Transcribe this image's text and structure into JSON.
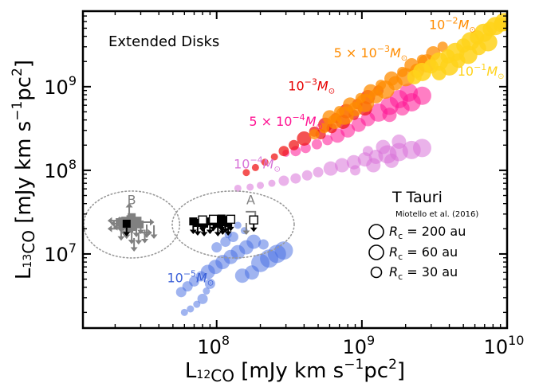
{
  "chart_data": {
    "type": "scatter",
    "title": "Extended Disks",
    "xlabel": "L₁₂CO [mJy km s⁻¹pc²]",
    "ylabel": "L₁₃CO [mJy km s⁻¹pc²]",
    "xlabel_parts": {
      "lead": "L",
      "sub": "12",
      "sub2": "CO",
      "rest": " [mJy km s",
      "sup": "−1",
      "tail": "pc",
      "sup2": "2",
      "end": "]"
    },
    "ylabel_parts": {
      "lead": "L",
      "sub": "13",
      "sub2": "CO",
      "rest": " [mJy km s",
      "sup": "−1",
      "tail": "pc",
      "sup2": "2",
      "end": "]"
    },
    "xscale": "log",
    "yscale": "log",
    "xlim": [
      12000000.0,
      10000000000.0
    ],
    "ylim": [
      1300000.0,
      8000000000.0
    ],
    "x_ticks": [
      {
        "value": 100000000.0,
        "base": "10",
        "exp": "8"
      },
      {
        "value": 1000000000.0,
        "base": "10",
        "exp": "9"
      },
      {
        "value": 10000000000.0,
        "base": "10",
        "exp": "10"
      }
    ],
    "y_ticks": [
      {
        "value": 10000000.0,
        "base": "10",
        "exp": "7"
      },
      {
        "value": 100000000.0,
        "base": "10",
        "exp": "8"
      },
      {
        "value": 1000000000.0,
        "base": "10",
        "exp": "9"
      }
    ],
    "series_labels": [
      {
        "text_main": "10",
        "text_exp": "−2",
        "text_tail": "M",
        "text_sun": "⊙",
        "color": "#ff8c00",
        "x": 4200000000.0,
        "y": 4900000000.0
      },
      {
        "text_main": "5 × 10",
        "text_exp": "−3",
        "text_tail": "M",
        "text_sun": "⊙",
        "color": "#ff8c00",
        "x": 1150000000.0,
        "y": 2250000000.0
      },
      {
        "text_main": "10",
        "text_exp": "−1",
        "text_tail": "M",
        "text_sun": "⊙",
        "color": "#ffd21a",
        "x": 6600000000.0,
        "y": 1350000000.0
      },
      {
        "text_main": "10",
        "text_exp": "−3",
        "text_tail": "M",
        "text_sun": "⊙",
        "color": "#e60000",
        "x": 450000000.0,
        "y": 900000000.0
      },
      {
        "text_main": "5 × 10",
        "text_exp": "−4",
        "text_tail": "M",
        "text_sun": "⊙",
        "color": "#ff1493",
        "x": 300000000.0,
        "y": 340000000.0
      },
      {
        "text_main": "10",
        "text_exp": "−4",
        "text_tail": "M",
        "text_sun": "⊙",
        "color": "#d873d8",
        "x": 190000000.0,
        "y": 105000000.0
      },
      {
        "text_main": "10",
        "text_exp": "−5",
        "text_tail": "M",
        "text_sun": "⊙",
        "color": "#3b60d8",
        "x": 66000000.0,
        "y": 4600000.0
      }
    ],
    "series": [
      {
        "mass": "1e-2",
        "color": "#ffd21a",
        "opacity": 0.85,
        "points": [
          [
            9500000000.0,
            5900000000.0,
            4
          ],
          [
            9000000000.0,
            5500000000.0,
            3
          ],
          [
            8300000000.0,
            5300000000.0,
            4
          ],
          [
            7600000000.0,
            4900000000.0,
            3
          ],
          [
            6900000000.0,
            4400000000.0,
            4
          ],
          [
            6200000000.0,
            3900000000.0,
            3
          ],
          [
            5600000000.0,
            3500000000.0,
            4
          ],
          [
            5000000000.0,
            3100000000.0,
            3
          ],
          [
            4400000000.0,
            2600000000.0,
            4
          ],
          [
            3900000000.0,
            2300000000.0,
            3
          ],
          [
            3400000000.0,
            2000000000.0,
            4
          ],
          [
            3000000000.0,
            1750000000.0,
            3
          ],
          [
            2600000000.0,
            1500000000.0,
            4
          ],
          [
            2300000000.0,
            1300000000.0,
            3
          ],
          [
            7400000000.0,
            3400000000.0,
            4
          ],
          [
            6400000000.0,
            2900000000.0,
            3
          ],
          [
            5400000000.0,
            2400000000.0,
            4
          ],
          [
            4600000000.0,
            2050000000.0,
            3
          ],
          [
            4000000000.0,
            1750000000.0,
            4
          ],
          [
            3400000000.0,
            1450000000.0,
            3
          ]
        ]
      },
      {
        "mass": "5e-3",
        "color": "#ff8c00",
        "opacity": 0.75,
        "points": [
          [
            3600000000.0,
            3000000000.0,
            2
          ],
          [
            3100000000.0,
            2500000000.0,
            3
          ],
          [
            2600000000.0,
            2100000000.0,
            2
          ],
          [
            2200000000.0,
            1800000000.0,
            3
          ],
          [
            1900000000.0,
            1500000000.0,
            2
          ],
          [
            1600000000.0,
            1250000000.0,
            3
          ],
          [
            1350000000.0,
            1050000000.0,
            2
          ],
          [
            1150000000.0,
            880000000.0,
            3
          ],
          [
            980000000.0,
            730000000.0,
            2
          ],
          [
            830000000.0,
            610000000.0,
            3
          ],
          [
            700000000.0,
            510000000.0,
            2
          ],
          [
            600000000.0,
            430000000.0,
            3
          ],
          [
            2800000000.0,
            1900000000.0,
            4
          ],
          [
            2400000000.0,
            1550000000.0,
            3
          ],
          [
            2000000000.0,
            1300000000.0,
            4
          ],
          [
            1700000000.0,
            1100000000.0,
            3
          ],
          [
            1450000000.0,
            920000000.0,
            4
          ],
          [
            1250000000.0,
            770000000.0,
            3
          ],
          [
            1050000000.0,
            640000000.0,
            4
          ],
          [
            900000000.0,
            540000000.0,
            3
          ],
          [
            760000000.0,
            450000000.0,
            4
          ],
          [
            650000000.0,
            380000000.0,
            3
          ],
          [
            550000000.0,
            320000000.0,
            2
          ],
          [
            470000000.0,
            270000000.0,
            2
          ]
        ]
      },
      {
        "mass": "1e-3",
        "color": "#f01010",
        "opacity": 0.72,
        "points": [
          [
            1300000000.0,
            900000000.0,
            2
          ],
          [
            1100000000.0,
            750000000.0,
            3
          ],
          [
            930000000.0,
            620000000.0,
            2
          ],
          [
            780000000.0,
            510000000.0,
            3
          ],
          [
            660000000.0,
            420000000.0,
            2
          ],
          [
            560000000.0,
            350000000.0,
            3
          ],
          [
            470000000.0,
            290000000.0,
            2
          ],
          [
            400000000.0,
            240000000.0,
            3
          ],
          [
            340000000.0,
            200000000.0,
            2
          ],
          [
            290000000.0,
            170000000.0,
            2
          ],
          [
            250000000.0,
            145000000.0,
            1
          ],
          [
            215000000.0,
            125000000.0,
            1
          ],
          [
            185000000.0,
            108000000.0,
            1
          ],
          [
            160000000.0,
            94000000.0,
            1
          ],
          [
            1050000000.0,
            550000000.0,
            3
          ],
          [
            880000000.0,
            460000000.0,
            2
          ],
          [
            740000000.0,
            380000000.0,
            3
          ],
          [
            620000000.0,
            320000000.0,
            2
          ],
          [
            520000000.0,
            270000000.0,
            2
          ]
        ]
      },
      {
        "mass": "5e-4",
        "color": "#ff1493",
        "opacity": 0.55,
        "points": [
          [
            2100000000.0,
            850000000.0,
            4
          ],
          [
            1800000000.0,
            710000000.0,
            4
          ],
          [
            1550000000.0,
            590000000.0,
            4
          ],
          [
            1300000000.0,
            490000000.0,
            4
          ],
          [
            1100000000.0,
            410000000.0,
            3
          ],
          [
            950000000.0,
            350000000.0,
            3
          ],
          [
            800000000.0,
            300000000.0,
            3
          ],
          [
            680000000.0,
            260000000.0,
            3
          ],
          [
            580000000.0,
            230000000.0,
            2
          ],
          [
            490000000.0,
            205000000.0,
            2
          ],
          [
            410000000.0,
            185000000.0,
            2
          ],
          [
            350000000.0,
            170000000.0,
            2
          ],
          [
            300000000.0,
            160000000.0,
            1
          ],
          [
            2600000000.0,
            780000000.0,
            4
          ],
          [
            2200000000.0,
            650000000.0,
            4
          ],
          [
            1900000000.0,
            550000000.0,
            3
          ],
          [
            1550000000.0,
            460000000.0,
            3
          ]
        ]
      },
      {
        "mass": "1e-4",
        "color": "#d873d8",
        "opacity": 0.55,
        "points": [
          [
            2600000000.0,
            185000000.0,
            4
          ],
          [
            2200000000.0,
            175000000.0,
            4
          ],
          [
            1800000000.0,
            165000000.0,
            4
          ],
          [
            1500000000.0,
            155000000.0,
            4
          ],
          [
            1250000000.0,
            145000000.0,
            3
          ],
          [
            1050000000.0,
            135000000.0,
            3
          ],
          [
            880000000.0,
            125000000.0,
            3
          ],
          [
            730000000.0,
            115000000.0,
            3
          ],
          [
            610000000.0,
            105000000.0,
            3
          ],
          [
            500000000.0,
            95000000.0,
            2
          ],
          [
            420000000.0,
            87000000.0,
            2
          ],
          [
            350000000.0,
            80000000.0,
            2
          ],
          [
            290000000.0,
            75000000.0,
            2
          ],
          [
            240000000.0,
            70000000.0,
            1
          ],
          [
            200000000.0,
            66000000.0,
            1
          ],
          [
            170000000.0,
            63000000.0,
            1
          ],
          [
            140000000.0,
            61000000.0,
            1
          ],
          [
            1800000000.0,
            220000000.0,
            3
          ],
          [
            1400000000.0,
            190000000.0,
            3
          ],
          [
            1100000000.0,
            170000000.0,
            2
          ],
          [
            1600000000.0,
            130000000.0,
            3
          ],
          [
            1200000000.0,
            115000000.0,
            3
          ],
          [
            900000000.0,
            100000000.0,
            2
          ]
        ]
      },
      {
        "mass": "1e-5",
        "color": "#4169e1",
        "opacity": 0.5,
        "points": [
          [
            290000000.0,
            11000000.0,
            4
          ],
          [
            260000000.0,
            10000000.0,
            4
          ],
          [
            230000000.0,
            8800000.0,
            4
          ],
          [
            200000000.0,
            7800000.0,
            4
          ],
          [
            180000000.0,
            14000000.0,
            3
          ],
          [
            160000000.0,
            12000000.0,
            3
          ],
          [
            140000000.0,
            10500000.0,
            3
          ],
          [
            125000000.0,
            9200000.0,
            3
          ],
          [
            110000000.0,
            8000000.0,
            3
          ],
          [
            98000000.0,
            7000000.0,
            3
          ],
          [
            87000000.0,
            6100000.0,
            3
          ],
          [
            78000000.0,
            5400000.0,
            2
          ],
          [
            70000000.0,
            4700000.0,
            2
          ],
          [
            63000000.0,
            4100000.0,
            2
          ],
          [
            57000000.0,
            3500000.0,
            2
          ],
          [
            80000000.0,
            2900000.0,
            2
          ],
          [
            73000000.0,
            2500000.0,
            1
          ],
          [
            66000000.0,
            2200000.0,
            1
          ],
          [
            60000000.0,
            2000000.0,
            1
          ],
          [
            130000000.0,
            16000000.0,
            2
          ],
          [
            115000000.0,
            14000000.0,
            2
          ],
          [
            100000000.0,
            12000000.0,
            2
          ],
          [
            155000000.0,
            19000000.0,
            1
          ],
          [
            140000000.0,
            22000000.0,
            1
          ],
          [
            120000000.0,
            17000000.0,
            1
          ],
          [
            210000000.0,
            13000000.0,
            2
          ],
          [
            175000000.0,
            6000000.0,
            3
          ],
          [
            150000000.0,
            5500000.0,
            3
          ],
          [
            90000000.0,
            4400000.0,
            2
          ],
          [
            85000000.0,
            3600000.0,
            1
          ]
        ]
      }
    ],
    "regions": [
      {
        "label": "B",
        "cx": 26000000.0,
        "cy": 22500000.0,
        "rx_dex": 0.33,
        "ry_dex": 0.4
      },
      {
        "label": "A",
        "cx": 130000000.0,
        "cy": 22500000.0,
        "rx_dex": 0.42,
        "ry_dex": 0.4
      }
    ],
    "upper_limits_filled_B": [
      [
        21500000.0,
        24000000.0
      ],
      [
        22500000.0,
        22000000.0
      ],
      [
        23500000.0,
        25000000.0
      ],
      [
        24500000.0,
        23000000.0
      ],
      [
        25500000.0,
        26000000.0
      ],
      [
        26500000.0,
        21000000.0
      ],
      [
        27500000.0,
        23500000.0
      ],
      [
        28500000.0,
        25000000.0
      ],
      [
        29500000.0,
        22500000.0
      ],
      [
        25000000.0,
        20000000.0
      ],
      [
        23000000.0,
        24500000.0
      ],
      [
        26000000.0,
        27500000.0
      ]
    ],
    "upper_limits_open_B": [
      [
        24000000.0,
        23000000.0
      ]
    ],
    "limit_arrows_B": [
      [
        23000000.0,
        23000000.0,
        "left"
      ],
      [
        22000000.0,
        25000000.0,
        "left"
      ],
      [
        24000000.0,
        21000000.0,
        "left"
      ],
      [
        26000000.0,
        19000000.0,
        "down"
      ],
      [
        28000000.0,
        23000000.0,
        "down"
      ],
      [
        30000000.0,
        24000000.0,
        "right"
      ],
      [
        33000000.0,
        22500000.0,
        "down"
      ],
      [
        37000000.0,
        22000000.0,
        "down"
      ],
      [
        25000000.0,
        28000000.0,
        "up"
      ],
      [
        27000000.0,
        15500000.0,
        "down"
      ],
      [
        29000000.0,
        18000000.0,
        "right"
      ],
      [
        32000000.0,
        19500000.0,
        "down"
      ],
      [
        22000000.0,
        20000000.0,
        "left"
      ],
      [
        25000000.0,
        25500000.0,
        "left"
      ]
    ],
    "upper_limits_filled_A": [
      [
        69000000.0,
        24500000.0
      ],
      [
        74000000.0,
        23500000.0
      ],
      [
        82000000.0,
        23000000.0
      ],
      [
        90000000.0,
        24500000.0
      ],
      [
        102000000.0,
        23000000.0
      ],
      [
        110000000.0,
        24000000.0
      ],
      [
        115000000.0,
        25500000.0
      ],
      [
        120000000.0,
        23500000.0
      ],
      [
        108000000.0,
        26500000.0
      ]
    ],
    "upper_limits_open_A": [
      [
        80000000.0,
        25500000.0
      ],
      [
        95000000.0,
        26000000.0
      ],
      [
        125000000.0,
        26000000.0
      ],
      [
        180000000.0,
        25500000.0
      ]
    ],
    "limit_arrows_A": [
      [
        180000000.0,
        32000000.0,
        "right"
      ],
      [
        160000000.0,
        23500000.0,
        "down"
      ]
    ],
    "legend": {
      "title": "T Tauri",
      "subtitle": "Miotello et al. (2016)",
      "entries": [
        {
          "label": "R",
          "sub": "c",
          "text": " = 200 au",
          "size": 4
        },
        {
          "label": "R",
          "sub": "c",
          "text": " = 60 au",
          "size": 3
        },
        {
          "label": "R",
          "sub": "c",
          "text": " = 30 au",
          "size": 2
        }
      ],
      "position": "right-middle"
    },
    "region_labels": [
      "B",
      "A"
    ],
    "grid": false
  }
}
